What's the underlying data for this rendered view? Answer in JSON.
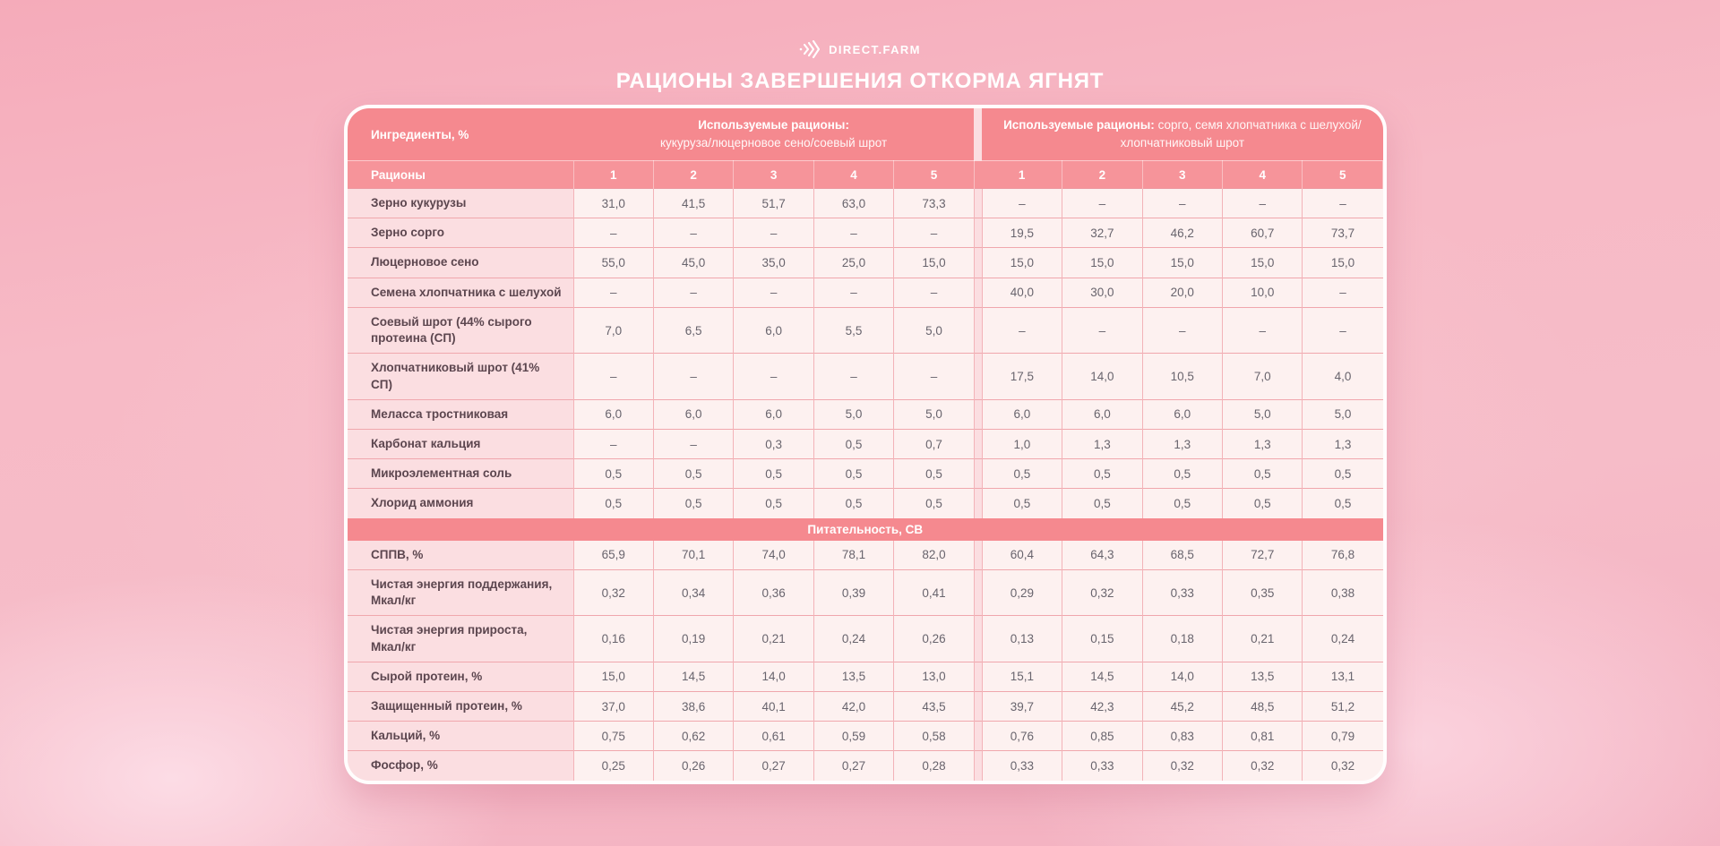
{
  "header": {
    "logo": "DIRECT.FARM",
    "title": "РАЦИОНЫ ЗАВЕРШЕНИЯ ОТКОРМА ЯГНЯТ"
  },
  "colors": {
    "accent_salmon": "#f5898f",
    "rations_row_salmon": "#f6949a",
    "label_column_pink": "#fbdee1",
    "value_cell_pink": "#fdf1f0",
    "background_pink": "#f6b4c2",
    "header_text": "#ffffff",
    "label_text": "#5c464f",
    "value_text": "#68646d"
  },
  "icons": {
    "logo_icon": "chevrons-right-icon"
  },
  "table": {
    "ingredients_header": "Ингредиенты, %",
    "rations_label": "Рационы",
    "group1": {
      "bold": "Используемые рационы:",
      "rest": "кукуруза/люцерновое сено/соевый шрот"
    },
    "group2": {
      "bold": "Используемые рационы:",
      "rest": " сорго, семя хлопчатника с шелухой/хлопчатниковый шрот"
    },
    "ration_numbers": [
      "1",
      "2",
      "3",
      "4",
      "5",
      "1",
      "2",
      "3",
      "4",
      "5"
    ],
    "section_label": "Питательность, СВ",
    "ingredient_rows": [
      {
        "label": "Зерно кукурузы",
        "values": [
          "31,0",
          "41,5",
          "51,7",
          "63,0",
          "73,3",
          "–",
          "–",
          "–",
          "–",
          "–"
        ]
      },
      {
        "label": "Зерно сорго",
        "values": [
          "–",
          "–",
          "–",
          "–",
          "–",
          "19,5",
          "32,7",
          "46,2",
          "60,7",
          "73,7"
        ]
      },
      {
        "label": "Люцерновое сено",
        "values": [
          "55,0",
          "45,0",
          "35,0",
          "25,0",
          "15,0",
          "15,0",
          "15,0",
          "15,0",
          "15,0",
          "15,0"
        ]
      },
      {
        "label": "Семена хлопчатника с шелухой",
        "values": [
          "–",
          "–",
          "–",
          "–",
          "–",
          "40,0",
          "30,0",
          "20,0",
          "10,0",
          "–"
        ]
      },
      {
        "label": "Соевый шрот (44% сырого протеина (СП)",
        "values": [
          "7,0",
          "6,5",
          "6,0",
          "5,5",
          "5,0",
          "–",
          "–",
          "–",
          "–",
          "–"
        ]
      },
      {
        "label": "Хлопчатниковый шрот (41% СП)",
        "values": [
          "–",
          "–",
          "–",
          "–",
          "–",
          "17,5",
          "14,0",
          "10,5",
          "7,0",
          "4,0"
        ]
      },
      {
        "label": "Меласса тростниковая",
        "values": [
          "6,0",
          "6,0",
          "6,0",
          "5,0",
          "5,0",
          "6,0",
          "6,0",
          "6,0",
          "5,0",
          "5,0"
        ]
      },
      {
        "label": "Карбонат кальция",
        "values": [
          "–",
          "–",
          "0,3",
          "0,5",
          "0,7",
          "1,0",
          "1,3",
          "1,3",
          "1,3",
          "1,3"
        ]
      },
      {
        "label": "Микроэлементная соль",
        "values": [
          "0,5",
          "0,5",
          "0,5",
          "0,5",
          "0,5",
          "0,5",
          "0,5",
          "0,5",
          "0,5",
          "0,5"
        ]
      },
      {
        "label": "Хлорид аммония",
        "values": [
          "0,5",
          "0,5",
          "0,5",
          "0,5",
          "0,5",
          "0,5",
          "0,5",
          "0,5",
          "0,5",
          "0,5"
        ]
      }
    ],
    "nutrition_rows": [
      {
        "label": "СППВ, %",
        "values": [
          "65,9",
          "70,1",
          "74,0",
          "78,1",
          "82,0",
          "60,4",
          "64,3",
          "68,5",
          "72,7",
          "76,8"
        ]
      },
      {
        "label": "Чистая энергия поддержания, Мкал/кг",
        "values": [
          "0,32",
          "0,34",
          "0,36",
          "0,39",
          "0,41",
          "0,29",
          "0,32",
          "0,33",
          "0,35",
          "0,38"
        ]
      },
      {
        "label": "Чистая энергия прироста, Мкал/кг",
        "values": [
          "0,16",
          "0,19",
          "0,21",
          "0,24",
          "0,26",
          "0,13",
          "0,15",
          "0,18",
          "0,21",
          "0,24"
        ]
      },
      {
        "label": "Сырой протеин, %",
        "values": [
          "15,0",
          "14,5",
          "14,0",
          "13,5",
          "13,0",
          "15,1",
          "14,5",
          "14,0",
          "13,5",
          "13,1"
        ]
      },
      {
        "label": "Защищенный протеин, %",
        "values": [
          "37,0",
          "38,6",
          "40,1",
          "42,0",
          "43,5",
          "39,7",
          "42,3",
          "45,2",
          "48,5",
          "51,2"
        ]
      },
      {
        "label": "Кальций, %",
        "values": [
          "0,75",
          "0,62",
          "0,61",
          "0,59",
          "0,58",
          "0,76",
          "0,85",
          "0,83",
          "0,81",
          "0,79"
        ]
      },
      {
        "label": "Фосфор, %",
        "values": [
          "0,25",
          "0,26",
          "0,27",
          "0,27",
          "0,28",
          "0,33",
          "0,33",
          "0,32",
          "0,32",
          "0,32"
        ]
      }
    ]
  },
  "chart_data": {
    "type": "table",
    "title": "РАЦИОНЫ ЗАВЕРШЕНИЯ ОТКОРМА ЯГНЯТ",
    "column_groups": [
      "Используемые рационы: кукуруза/люцерновое сено/соевый шрот",
      "Используемые рационы: сорго, семя хлопчатника с шелухой/хлопчатниковый шрот"
    ],
    "columns": [
      "Рационы",
      "1",
      "2",
      "3",
      "4",
      "5",
      "1",
      "2",
      "3",
      "4",
      "5"
    ],
    "rows": [
      [
        "Зерно кукурузы",
        "31,0",
        "41,5",
        "51,7",
        "63,0",
        "73,3",
        "–",
        "–",
        "–",
        "–",
        "–"
      ],
      [
        "Зерно сорго",
        "–",
        "–",
        "–",
        "–",
        "–",
        "19,5",
        "32,7",
        "46,2",
        "60,7",
        "73,7"
      ],
      [
        "Люцерновое сено",
        "55,0",
        "45,0",
        "35,0",
        "25,0",
        "15,0",
        "15,0",
        "15,0",
        "15,0",
        "15,0",
        "15,0"
      ],
      [
        "Семена хлопчатника с шелухой",
        "–",
        "–",
        "–",
        "–",
        "–",
        "40,0",
        "30,0",
        "20,0",
        "10,0",
        "–"
      ],
      [
        "Соевый шрот (44% сырого протеина (СП)",
        "7,0",
        "6,5",
        "6,0",
        "5,5",
        "5,0",
        "–",
        "–",
        "–",
        "–",
        "–"
      ],
      [
        "Хлопчатниковый шрот (41% СП)",
        "–",
        "–",
        "–",
        "–",
        "–",
        "17,5",
        "14,0",
        "10,5",
        "7,0",
        "4,0"
      ],
      [
        "Меласса тростниковая",
        "6,0",
        "6,0",
        "6,0",
        "5,0",
        "5,0",
        "6,0",
        "6,0",
        "6,0",
        "5,0",
        "5,0"
      ],
      [
        "Карбонат кальция",
        "–",
        "–",
        "0,3",
        "0,5",
        "0,7",
        "1,0",
        "1,3",
        "1,3",
        "1,3",
        "1,3"
      ],
      [
        "Микроэлементная соль",
        "0,5",
        "0,5",
        "0,5",
        "0,5",
        "0,5",
        "0,5",
        "0,5",
        "0,5",
        "0,5",
        "0,5"
      ],
      [
        "Хлорид аммония",
        "0,5",
        "0,5",
        "0,5",
        "0,5",
        "0,5",
        "0,5",
        "0,5",
        "0,5",
        "0,5",
        "0,5"
      ],
      [
        "Питательность, СВ"
      ],
      [
        "СППВ, %",
        "65,9",
        "70,1",
        "74,0",
        "78,1",
        "82,0",
        "60,4",
        "64,3",
        "68,5",
        "72,7",
        "76,8"
      ],
      [
        "Чистая энергия поддержания, Мкал/кг",
        "0,32",
        "0,34",
        "0,36",
        "0,39",
        "0,41",
        "0,29",
        "0,32",
        "0,33",
        "0,35",
        "0,38"
      ],
      [
        "Чистая энергия прироста, Мкал/кг",
        "0,16",
        "0,19",
        "0,21",
        "0,24",
        "0,26",
        "0,13",
        "0,15",
        "0,18",
        "0,21",
        "0,24"
      ],
      [
        "Сырой протеин, %",
        "15,0",
        "14,5",
        "14,0",
        "13,5",
        "13,0",
        "15,1",
        "14,5",
        "14,0",
        "13,5",
        "13,1"
      ],
      [
        "Защищенный протеин, %",
        "37,0",
        "38,6",
        "40,1",
        "42,0",
        "43,5",
        "39,7",
        "42,3",
        "45,2",
        "48,5",
        "51,2"
      ],
      [
        "Кальций, %",
        "0,75",
        "0,62",
        "0,61",
        "0,59",
        "0,58",
        "0,76",
        "0,85",
        "0,83",
        "0,81",
        "0,79"
      ],
      [
        "Фосфор, %",
        "0,25",
        "0,26",
        "0,27",
        "0,27",
        "0,28",
        "0,33",
        "0,33",
        "0,32",
        "0,32",
        "0,32"
      ]
    ]
  }
}
